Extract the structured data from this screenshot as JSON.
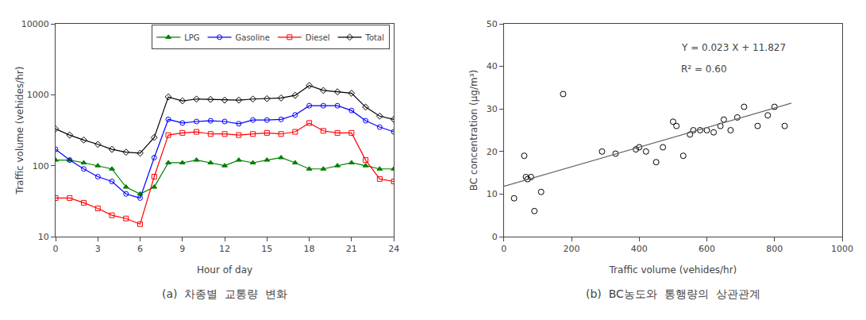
{
  "chart_data": [
    {
      "type": "line",
      "x_label": "Hour of day",
      "y_label": "Traffic volume (vehides/hr)",
      "caption": "(a)  차종별  교통량  변화",
      "x": [
        0,
        1,
        2,
        3,
        4,
        5,
        6,
        7,
        8,
        9,
        10,
        11,
        12,
        13,
        14,
        15,
        16,
        17,
        18,
        19,
        20,
        21,
        22,
        23,
        24
      ],
      "series": [
        {
          "name": "LPG",
          "color": "green",
          "marker": "triangle-up",
          "values": [
            120,
            120,
            110,
            100,
            90,
            50,
            40,
            50,
            110,
            110,
            120,
            110,
            100,
            120,
            110,
            120,
            130,
            110,
            90,
            90,
            100,
            110,
            100,
            90,
            90
          ]
        },
        {
          "name": "Gasoline",
          "color": "blue",
          "marker": "circle-open",
          "values": [
            170,
            120,
            90,
            70,
            60,
            40,
            35,
            130,
            450,
            400,
            420,
            430,
            420,
            390,
            440,
            440,
            450,
            520,
            700,
            700,
            700,
            600,
            430,
            350,
            300
          ]
        },
        {
          "name": "Diesel",
          "color": "red",
          "marker": "square-open",
          "values": [
            35,
            35,
            30,
            25,
            20,
            18,
            15,
            70,
            270,
            290,
            300,
            280,
            280,
            270,
            280,
            290,
            280,
            300,
            400,
            310,
            290,
            290,
            120,
            65,
            60
          ]
        },
        {
          "name": "Total",
          "color": "black",
          "marker": "diamond-open",
          "values": [
            330,
            270,
            230,
            200,
            170,
            155,
            150,
            250,
            930,
            820,
            870,
            860,
            840,
            840,
            870,
            880,
            900,
            980,
            1350,
            1150,
            1100,
            1050,
            670,
            500,
            450
          ]
        }
      ],
      "xlim": [
        0,
        24
      ],
      "xticks": [
        0,
        3,
        6,
        9,
        12,
        15,
        18,
        21,
        24
      ],
      "ylim": [
        10,
        10000
      ],
      "yticks": [
        10,
        100,
        1000,
        10000
      ],
      "log": "y",
      "grid": false,
      "legend": "upper right"
    },
    {
      "type": "scatter",
      "x_label": "Traffic volume (vehides/hr)",
      "y_label": "BC concentration (μg/m³)",
      "caption": "(b)  BC농도와  통행량의  상관관계",
      "annotations": [
        "Y = 0.023 X + 11.827",
        "R² = 0.60"
      ],
      "series": [
        {
          "type": "scatter",
          "color": "black",
          "marker": "circle-open",
          "x": [
            30,
            60,
            65,
            70,
            80,
            90,
            110,
            175,
            290,
            330,
            390,
            400,
            420,
            450,
            470,
            500,
            510,
            530,
            550,
            560,
            580,
            600,
            620,
            640,
            650,
            670,
            690,
            710,
            750,
            780,
            800,
            830
          ],
          "values": [
            9,
            19,
            14,
            13.5,
            14,
            6,
            10.5,
            33.5,
            20,
            19.5,
            20.5,
            21,
            20,
            17.5,
            21,
            27,
            26,
            19,
            24,
            25,
            25,
            25,
            24.5,
            26,
            27.5,
            25,
            28,
            30.5,
            26,
            28.5,
            30.5,
            26
          ]
        },
        {
          "type": "line",
          "color": "dimgray",
          "line_style": "solid",
          "x": [
            0,
            850
          ],
          "values": [
            11.827,
            31.377
          ]
        }
      ],
      "xlim": [
        0,
        1000
      ],
      "xticks": [
        0,
        200,
        400,
        600,
        800,
        1000
      ],
      "ylim": [
        0,
        50
      ],
      "yticks": [
        0,
        10,
        20,
        30,
        40,
        50
      ],
      "grid": false
    }
  ]
}
